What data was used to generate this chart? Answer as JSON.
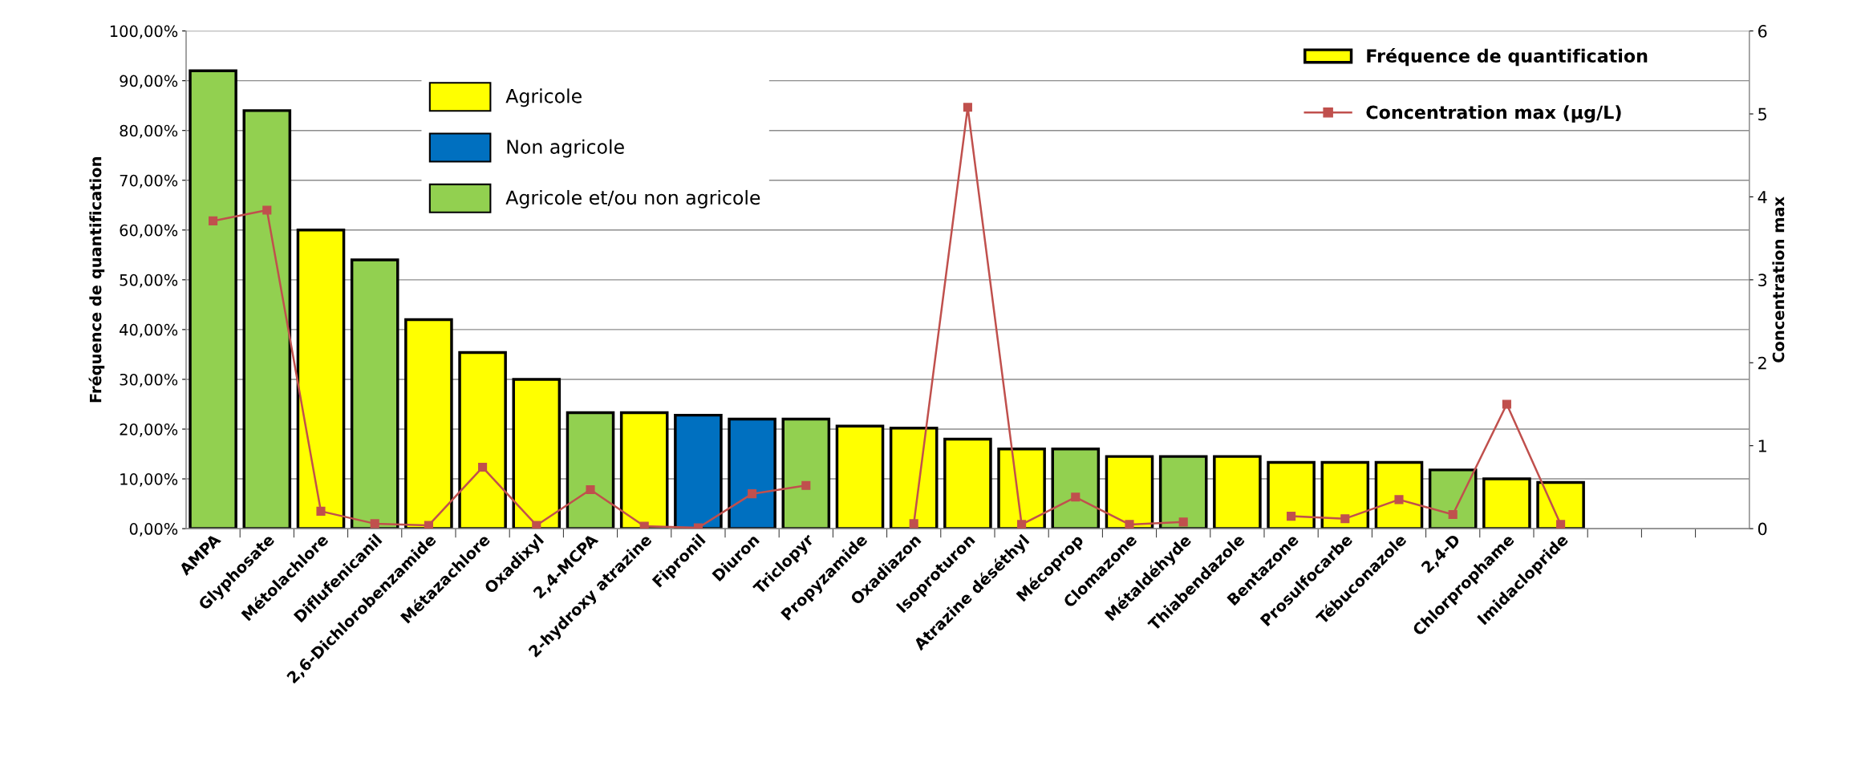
{
  "chart_data": {
    "type": "bar",
    "categories": [
      "AMPA",
      "Glyphosate",
      "Métolachlore",
      "Diflufenicanil",
      "2,6-Dichlorobenzamide",
      "Métazachlore",
      "Oxadixyl",
      "2,4-MCPA",
      "2-hydroxy atrazine",
      "Fipronil",
      "Diuron",
      "Triclopyr",
      "Propyzamide",
      "Oxadiazon",
      "Isoproturon",
      "Atrazine déséthyl",
      "Mécoprop",
      "Clomazone",
      "Métaldéhyde",
      "Thiabendazole",
      "Bentazone",
      "Prosulfocarbe",
      "Tébuconazole",
      "2,4-D",
      "Chlorprophame",
      "Imidaclopride",
      null,
      null,
      null
    ],
    "series": [
      {
        "name": "Fréquence de quantification",
        "color": "#ffff00",
        "colors": [
          "#92d050",
          "#92d050",
          "#ffff00",
          "#92d050",
          "#ffff00",
          "#ffff00",
          "#ffff00",
          "#92d050",
          "#ffff00",
          "#0070c0",
          "#0070c0",
          "#92d050",
          "#ffff00",
          "#ffff00",
          "#ffff00",
          "#ffff00",
          "#92d050",
          "#ffff00",
          "#92d050",
          "#ffff00",
          "#ffff00",
          "#ffff00",
          "#ffff00",
          "#92d050",
          "#ffff00",
          "#ffff00",
          "#ffff00",
          "#ffff00",
          "#ffff00"
        ],
        "values": [
          92,
          84,
          60,
          54,
          42,
          35.4,
          30,
          23.3,
          23.3,
          22.8,
          22,
          22,
          20.6,
          20.2,
          18,
          16,
          16,
          14.5,
          14.5,
          14.5,
          13.3,
          13.3,
          13.3,
          11.8,
          10,
          9.3,
          null,
          null,
          null
        ]
      },
      {
        "name": "Concentration max (µg/L)",
        "type": "line",
        "axis": "y2",
        "color": "#c0504d",
        "values": [
          3.71,
          3.84,
          0.21,
          0.06,
          0.04,
          0.74,
          0.04,
          0.47,
          0.03,
          0.01,
          0.42,
          0.52,
          null,
          0.06,
          5.08,
          0.05,
          0.38,
          0.05,
          0.08,
          null,
          0.15,
          0.12,
          0.35,
          0.17,
          1.5,
          0.05,
          null,
          null,
          null
        ]
      }
    ],
    "ylabel": "Fréquence de quantification",
    "y2label": "Concentration max",
    "ylim": [
      0,
      100
    ],
    "yticks": [
      {
        "value": 0,
        "label": "0,00%"
      },
      {
        "value": 10,
        "label": "10,00%"
      },
      {
        "value": 20,
        "label": "20,00%"
      },
      {
        "value": 30,
        "label": "30,00%"
      },
      {
        "value": 40,
        "label": "40,00%"
      },
      {
        "value": 50,
        "label": "50,00%"
      },
      {
        "value": 60,
        "label": "60,00%"
      },
      {
        "value": 70,
        "label": "70,00%"
      },
      {
        "value": 80,
        "label": "80,00%"
      },
      {
        "value": 90,
        "label": "90,00%"
      },
      {
        "value": 100,
        "label": "100,00%"
      }
    ],
    "y2lim": [
      0,
      6
    ],
    "y2ticks": [
      0,
      1,
      2,
      3,
      4,
      5,
      6
    ],
    "annotations": [
      "Agricole",
      "Non agricole",
      "Agricole et/ou non agricole"
    ],
    "grid": "y",
    "legend": "top right",
    "marker": "square",
    "line_style": "solid"
  }
}
